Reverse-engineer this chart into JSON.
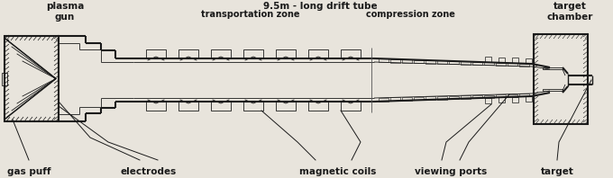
{
  "bg_color": "#e8e4dc",
  "line_color": "#1a1a1a",
  "title_top1": "9.5m - long drift tube",
  "title_top2_left": "transportation zone",
  "title_top2_right": "compression zone",
  "label_plasma_gun": "plasma\ngun",
  "label_target_chamber": "target\nchamber",
  "label_gas_puff": "gas puff",
  "label_electrodes": "electrodes",
  "label_magnetic_coils": "magnetic coils",
  "label_viewing_ports": "viewing ports",
  "label_target": "target",
  "fig_width": 6.8,
  "fig_height": 1.98,
  "dpi": 100
}
